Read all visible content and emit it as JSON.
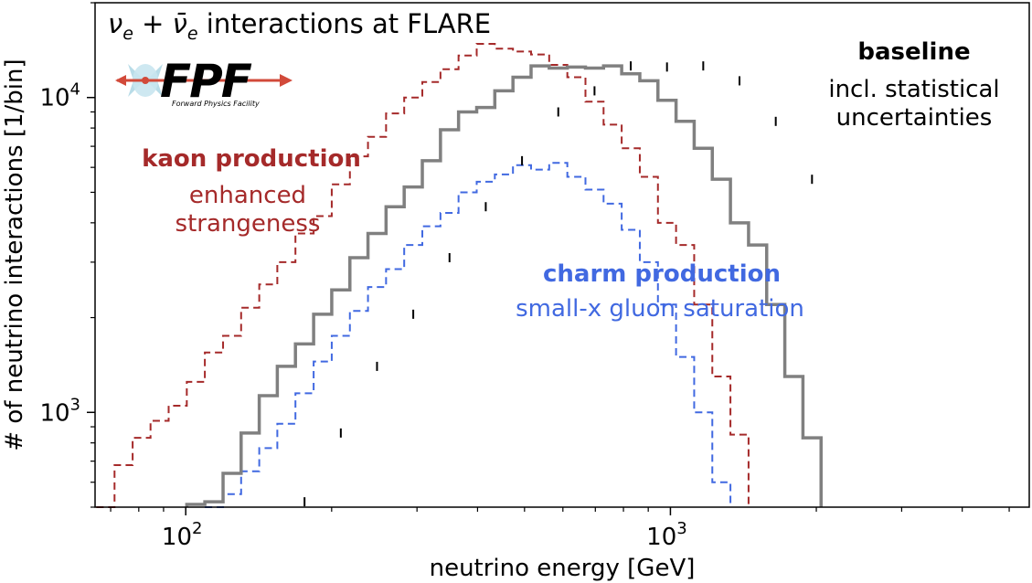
{
  "chart_data": {
    "type": "line",
    "title": "νe + ν̄e interactions at FLARE",
    "logo_text": "FPF",
    "logo_subtitle": "Forward Physics Facility",
    "xlabel": "neutrino energy [GeV]",
    "ylabel": "# of neutrino interactions [1/bin]",
    "xscale": "log",
    "yscale": "log",
    "xlim": [
      65,
      5500
    ],
    "ylim": [
      500,
      20000
    ],
    "xtick_labels": [
      {
        "value": 100,
        "base": "10",
        "exp": "2"
      },
      {
        "value": 1000,
        "base": "10",
        "exp": "3"
      }
    ],
    "ytick_labels": [
      {
        "value": 1000,
        "base": "10",
        "exp": "3"
      },
      {
        "value": 10000,
        "base": "10",
        "exp": "4"
      }
    ],
    "grid": false,
    "annotations": {
      "kaon_title": "kaon production",
      "kaon_sub": "enhanced strangeness",
      "kaon_sub_line1": "enhanced",
      "kaon_sub_line2": "strangeness",
      "charm_title": "charm production",
      "charm_sub": "small-x gluon saturation",
      "baseline_title": "baseline",
      "baseline_sub_line1": "incl. statistical",
      "baseline_sub_line2": "uncertainties"
    },
    "bin_edges": [
      65.4,
      71.3,
      77.7,
      84.6,
      92.2,
      100.5,
      109.5,
      119.4,
      130.1,
      141.8,
      154.5,
      168.4,
      183.6,
      200.1,
      218.1,
      237.7,
      259.0,
      282.3,
      307.7,
      335.4,
      365.5,
      398.4,
      434.2,
      473.3,
      515.8,
      562.2,
      612.8,
      667.9,
      727.9,
      793.3,
      864.7,
      942.4,
      1027.2,
      1119.5,
      1220.2,
      1329.9,
      1449.5,
      1579.9,
      1722.0,
      1876.8,
      2045.6,
      2229.6,
      2430.1,
      2648.6,
      2886.8,
      3146.5,
      3429.4,
      3737.8,
      4074.0,
      4440.4,
      4839.7
    ],
    "colors": {
      "baseline": "#808080",
      "kaon": "#a52a2a",
      "charm": "#4169e1",
      "errorbar": "#000000"
    },
    "series": [
      {
        "name": "baseline",
        "color": "#808080",
        "style": "solid",
        "values": [
          null,
          null,
          null,
          null,
          null,
          510,
          520,
          640,
          860,
          1130,
          1400,
          1650,
          2050,
          2450,
          3100,
          3700,
          4500,
          5200,
          6300,
          7900,
          9000,
          9300,
          10500,
          11600,
          12600,
          12400,
          12500,
          12400,
          12600,
          11900,
          11300,
          9800,
          8400,
          6900,
          5500,
          4000,
          3400,
          2200,
          1300,
          830
        ],
        "start_bin": 5,
        "error_bins": [
          5,
          7,
          9,
          11,
          13,
          15,
          17,
          19,
          21,
          23,
          25,
          27,
          29,
          31,
          33,
          35,
          37,
          39
        ]
      },
      {
        "name": "kaon production",
        "color": "#a52a2a",
        "style": "dashed",
        "values": [
          500,
          680,
          830,
          940,
          1050,
          1250,
          1550,
          1750,
          2150,
          2550,
          3000,
          3700,
          4200,
          5300,
          6500,
          7500,
          8900,
          10000,
          11200,
          12300,
          13600,
          14800,
          14300,
          14000,
          13700,
          12700,
          11600,
          9700,
          8200,
          6900,
          5600,
          4000,
          3400,
          2200,
          1300,
          850
        ]
      },
      {
        "name": "charm production",
        "color": "#4169e1",
        "style": "dashed",
        "values": [
          null,
          null,
          null,
          null,
          null,
          null,
          500,
          550,
          650,
          770,
          920,
          1150,
          1450,
          1750,
          2100,
          2500,
          2850,
          3400,
          3900,
          4300,
          5000,
          5400,
          5700,
          6100,
          5900,
          6200,
          5600,
          5100,
          4600,
          3800,
          3000,
          2200,
          1500,
          1000,
          600
        ],
        "start_bin": 6
      }
    ]
  }
}
